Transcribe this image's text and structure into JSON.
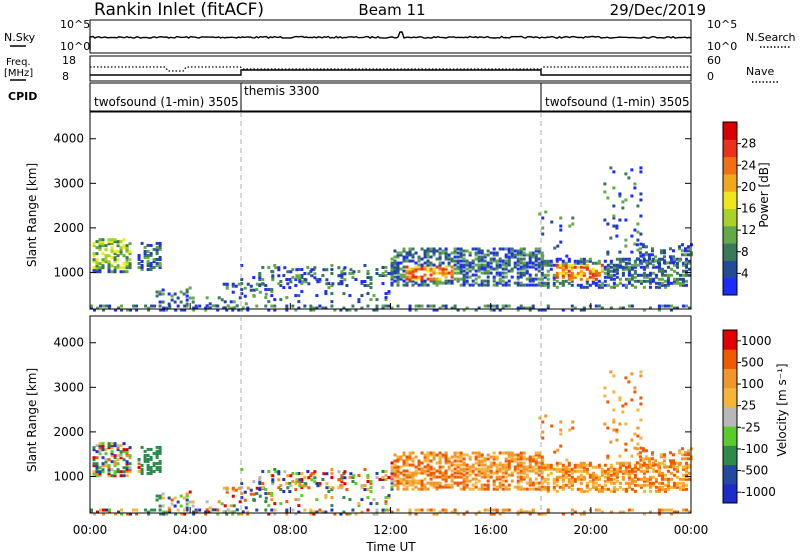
{
  "header": {
    "station": "Rankin Inlet (fitACF)",
    "beam": "Beam 11",
    "date": "29/Dec/2019"
  },
  "colors": {
    "power_scale": [
      "#1e2bff",
      "#244b9a",
      "#3a7a5a",
      "#64a84a",
      "#a8d22a",
      "#f0e61e",
      "#f0a81c",
      "#ef6f15",
      "#e8321a",
      "#d90000"
    ],
    "velocity_scale": [
      "#e10000",
      "#ef5a00",
      "#f0962a",
      "#f5b43a",
      "#b8b8b8",
      "#5acb2a",
      "#2f8a4a",
      "#234aa0",
      "#1b2cc8"
    ]
  },
  "chart_data": [
    {
      "id": "nsky_panel",
      "type": "line",
      "left_label": "N.Sky",
      "right_label": "N.Search",
      "left_ticks": [
        "10^5",
        "10^0"
      ],
      "right_ticks": [
        "10^5",
        "10^0"
      ]
    },
    {
      "id": "freq_panel",
      "type": "line",
      "left_label": "Freq.",
      "left_unit": "[MHz]",
      "right_label": "Nave",
      "left_ticks": [
        "18",
        "8"
      ],
      "right_ticks": [
        "60",
        "0"
      ]
    },
    {
      "id": "cpid_panel",
      "type": "table",
      "label": "CPID",
      "segments": [
        {
          "name": "twofsound (1-min) 3505",
          "start_h": 0,
          "end_h": 6
        },
        {
          "name": "themis 3300",
          "start_h": 6,
          "end_h": 18
        },
        {
          "name": "twofsound (1-min) 3505",
          "start_h": 18,
          "end_h": 24
        }
      ]
    },
    {
      "id": "power_panel",
      "type": "heatmap",
      "ylabel": "Slant Range [km]",
      "yticks": [
        1000,
        2000,
        3000,
        4000
      ],
      "ylim": [
        180,
        4600
      ],
      "xlim": [
        0,
        24
      ],
      "colorbar_label": "Power [dB]",
      "colorbar_ticks": [
        "4",
        "8",
        "12",
        "16",
        "20",
        "24",
        "28"
      ]
    },
    {
      "id": "velocity_panel",
      "type": "heatmap",
      "ylabel": "Slant Range [km]",
      "yticks": [
        1000,
        2000,
        3000,
        4000
      ],
      "ylim": [
        180,
        4600
      ],
      "xlim": [
        0,
        24
      ],
      "xlabel": "Time UT",
      "xticks": [
        "00:00",
        "04:00",
        "08:00",
        "12:00",
        "16:00",
        "20:00",
        "00:00"
      ],
      "colorbar_label": "Velocity [m s⁻¹]",
      "colorbar_ticks": [
        "1000",
        "500",
        "100",
        "25",
        "-25",
        "-100",
        "-500",
        "-1000"
      ]
    }
  ]
}
